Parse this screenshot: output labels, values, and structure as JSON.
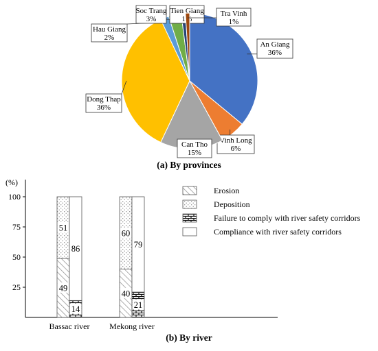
{
  "chart_data": [
    {
      "type": "pie",
      "caption": "(a) By provinces",
      "slices": [
        {
          "label": "An Giang",
          "value": 36,
          "value_label": "36%",
          "color": "#4472c4"
        },
        {
          "label": "Vinh Long",
          "value": 6,
          "value_label": "6%",
          "color": "#ed7d31"
        },
        {
          "label": "Can Tho",
          "value": 15,
          "value_label": "15%",
          "color": "#a5a5a5"
        },
        {
          "label": "Dong Thap",
          "value": 36,
          "value_label": "36%",
          "color": "#ffc000"
        },
        {
          "label": "Hau Giang",
          "value": 2,
          "value_label": "2%",
          "color": "#5b9bd5"
        },
        {
          "label": "Soc Trang",
          "value": 3,
          "value_label": "3%",
          "color": "#70ad47"
        },
        {
          "label": "Tien Giang",
          "value": 1,
          "value_label": "1%",
          "color": "#264478"
        },
        {
          "label": "Tra Vinh",
          "value": 1,
          "value_label": "1%",
          "color": "#9e480e"
        }
      ]
    },
    {
      "type": "bar",
      "stacked": true,
      "caption": "(b) By river",
      "ylabel": "(%)",
      "yticks": [
        25,
        50,
        75,
        100
      ],
      "ylim": [
        0,
        100
      ],
      "categories": [
        "Bassac river",
        "Mekong river"
      ],
      "columns": [
        {
          "category": "Bassac river",
          "left": [
            {
              "series": "Erosion",
              "value": 49,
              "label": "49"
            },
            {
              "series": "Deposition",
              "value": 51,
              "label": "51"
            }
          ],
          "right": [
            {
              "series": "Failure to comply with river safety corridors",
              "value": 14,
              "label": "14"
            },
            {
              "series": "Compliance with river safety corridors",
              "value": 86,
              "label": "86"
            }
          ]
        },
        {
          "category": "Mekong river",
          "left": [
            {
              "series": "Erosion",
              "value": 40,
              "label": "40"
            },
            {
              "series": "Deposition",
              "value": 60,
              "label": "60"
            }
          ],
          "right": [
            {
              "series": "Failure to comply with river safety corridors",
              "value": 21,
              "label": "21"
            },
            {
              "series": "Compliance with river safety corridors",
              "value": 79,
              "label": "79"
            }
          ]
        }
      ],
      "legend": [
        {
          "name": "Erosion",
          "pattern": "hatch"
        },
        {
          "name": "Deposition",
          "pattern": "dots"
        },
        {
          "name": "Failure to comply with river safety corridors",
          "pattern": "brick"
        },
        {
          "name": "Compliance with river safety corridors",
          "pattern": "blank"
        }
      ],
      "legend_position": "top-right"
    }
  ]
}
